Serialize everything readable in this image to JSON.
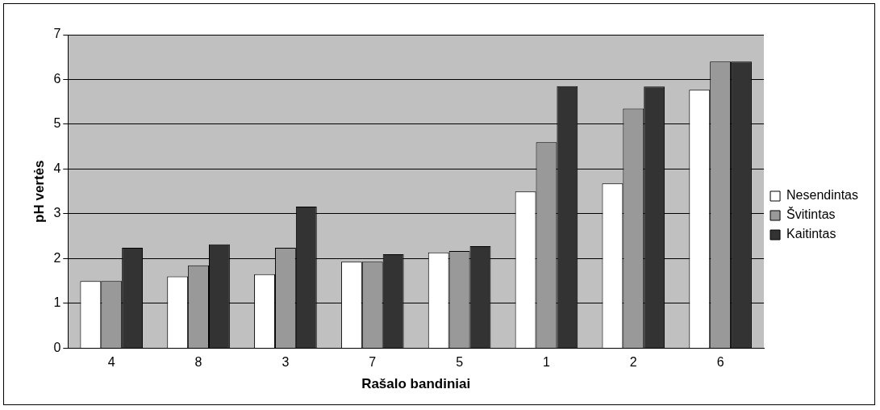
{
  "chart_data": {
    "type": "bar",
    "xlabel": "Rašalo bandiniai",
    "ylabel": "pH vertės",
    "categories": [
      "4",
      "8",
      "3",
      "7",
      "5",
      "1",
      "2",
      "6"
    ],
    "series": [
      {
        "name": "Nesendintas",
        "color": "#ffffff",
        "values": [
          1.5,
          1.6,
          1.65,
          1.93,
          2.14,
          3.5,
          3.68,
          5.77
        ]
      },
      {
        "name": "Švitintas",
        "color": "#999999",
        "values": [
          1.5,
          1.85,
          2.24,
          1.93,
          2.17,
          4.6,
          5.35,
          6.4
        ]
      },
      {
        "name": "Kaitintas",
        "color": "#333333",
        "values": [
          2.24,
          2.32,
          3.16,
          2.1,
          2.28,
          5.85,
          5.84,
          6.4
        ]
      }
    ],
    "ylim": [
      0,
      7
    ],
    "yticks": [
      0,
      1,
      2,
      3,
      4,
      5,
      6,
      7
    ],
    "grid": "y",
    "legend": "right"
  }
}
